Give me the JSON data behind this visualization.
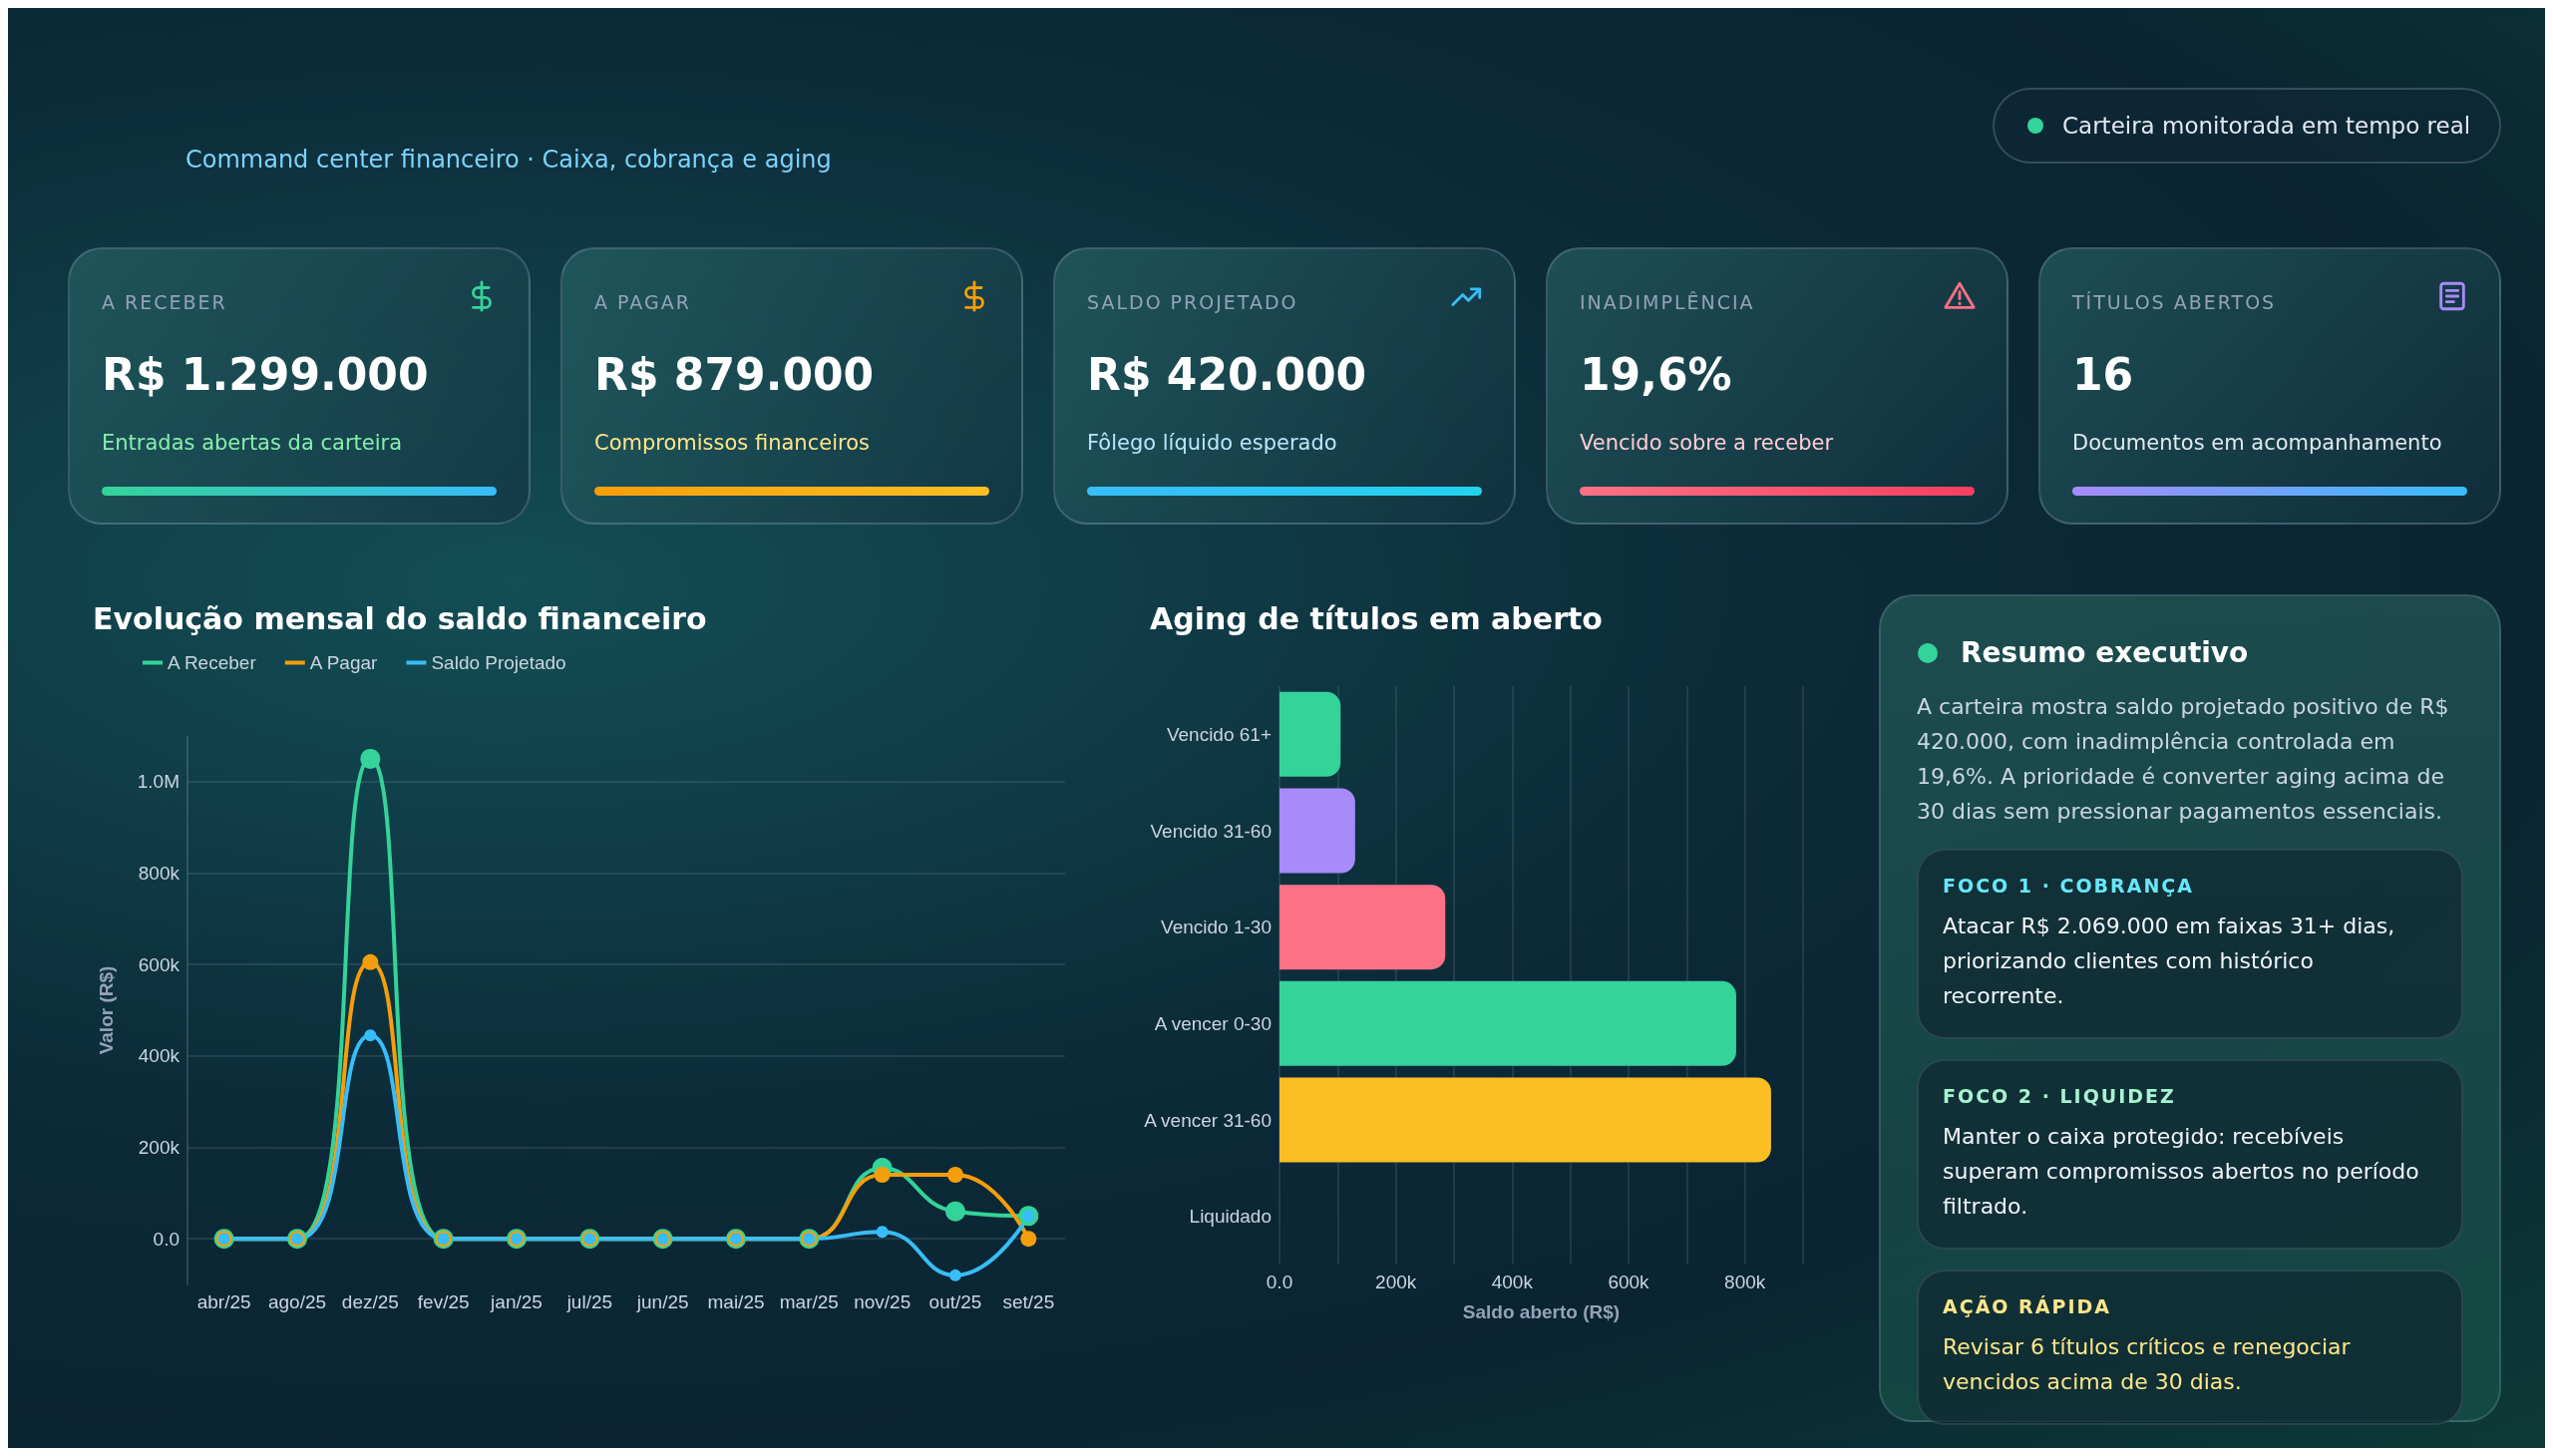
{
  "chart_data": [
    {
      "type": "other",
      "subtitle": "Command center financeiro · Caixa, cobrança e aging",
      "annotations": [
        "Carteira monitorada em tempo real",
        "A RECEBER",
        "R$ 1.299.000",
        "Entradas abertas da carteira",
        "A PAGAR",
        "R$ 879.000",
        "Compromissos financeiros",
        "SALDO PROJETADO",
        "R$ 420.000",
        "Fôlego líquido esperado",
        "INADIMPLÊNCIA",
        "19,6%",
        "Vencido sobre a receber",
        "TÍTULOS ABERTOS",
        "16",
        "Documentos em acompanhamento"
      ]
    },
    {
      "type": "line",
      "title": "Evolução mensal do saldo financeiro",
      "ylabel": "Valor (R$)",
      "categories": [
        "abr/25",
        "ago/25",
        "dez/25",
        "fev/25",
        "jan/25",
        "jul/25",
        "jun/25",
        "mai/25",
        "mar/25",
        "nov/25",
        "out/25",
        "set/25"
      ],
      "series": [
        {
          "name": "A Receber",
          "color": "#34d399",
          "values": [
            0,
            0,
            1050000,
            0,
            0,
            0,
            0,
            0,
            0,
            155000,
            60000,
            50000
          ]
        },
        {
          "name": "A Pagar",
          "color": "#f59e0b",
          "values": [
            0,
            0,
            605000,
            0,
            0,
            0,
            0,
            0,
            0,
            140000,
            140000,
            0
          ]
        },
        {
          "name": "Saldo Projetado",
          "color": "#38bdf8",
          "values": [
            0,
            0,
            445000,
            0,
            0,
            0,
            0,
            0,
            0,
            15000,
            -80000,
            50000
          ]
        }
      ],
      "ylim": [
        -100000,
        1100000
      ],
      "yticks": [
        {
          "value": 0,
          "label": "0.0"
        },
        {
          "value": 200000,
          "label": "200k"
        },
        {
          "value": 400000,
          "label": "400k"
        },
        {
          "value": 600000,
          "label": "600k"
        },
        {
          "value": 800000,
          "label": "800k"
        },
        {
          "value": 1000000,
          "label": "1.0M"
        }
      ],
      "grid": "y",
      "legend": "top left",
      "marker": "circle",
      "line_style": "solid"
    },
    {
      "type": "bar",
      "orientation": "horizontal",
      "title": "Aging de títulos em aberto",
      "xlabel": "Saldo aberto (R$)",
      "categories": [
        "Vencido 61+",
        "Vencido 31-60",
        "Vencido 1-30",
        "A vencer 0-30",
        "A vencer 31-60",
        "Liquidado"
      ],
      "values": [
        105000,
        130000,
        285000,
        785000,
        845000,
        0
      ],
      "colors": [
        "#34d399",
        "#a78bfa",
        "#fb7185",
        "#34d399",
        "#fbbf24",
        "#94a3b8"
      ],
      "xlim": [
        0,
        900000
      ],
      "xticks": [
        {
          "value": 0,
          "label": "0.0"
        },
        {
          "value": 100000,
          "label": null
        },
        {
          "value": 200000,
          "label": "200k"
        },
        {
          "value": 300000,
          "label": null
        },
        {
          "value": 400000,
          "label": "400k"
        },
        {
          "value": 500000,
          "label": null
        },
        {
          "value": 600000,
          "label": "600k"
        },
        {
          "value": 700000,
          "label": null
        },
        {
          "value": 800000,
          "label": "800k"
        },
        {
          "value": 900000,
          "label": null
        }
      ],
      "grid": "x"
    },
    {
      "type": "other",
      "title": "Resumo executivo",
      "annotations": [
        "A carteira mostra saldo projetado positivo de R$ 420.000, com inadimplência controlada em 19,6%. A prioridade é converter aging acima de 30 dias sem pressionar pagamentos essenciais.",
        "FOCO 1 · COBRANÇA",
        "Atacar R$ 2.069.000 em faixas 31+ dias, priorizando clientes com histórico recorrente.",
        "FOCO 2 · LIQUIDEZ",
        "Manter o caixa protegido: recebíveis superam compromissos abertos no período filtrado.",
        "AÇÃO RÁPIDA",
        "Revisar 6 títulos críticos e renegociar vencidos acima de 30 dias."
      ]
    }
  ]
}
